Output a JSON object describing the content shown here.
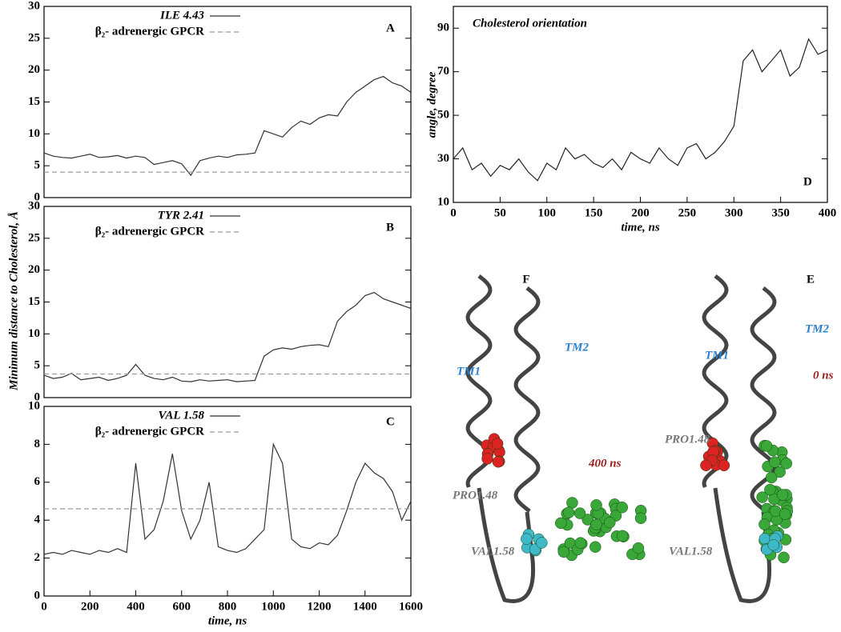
{
  "ylabel_shared": "Minimum distance to Cholesterol, Å",
  "chart_data": [
    {
      "type": "line",
      "label": "A",
      "xlim": [
        0,
        1600
      ],
      "ylim": [
        0,
        30
      ],
      "yticks": [
        0,
        5,
        10,
        15,
        20,
        25,
        30
      ],
      "x": [
        0,
        40,
        80,
        120,
        160,
        200,
        240,
        280,
        320,
        360,
        400,
        440,
        480,
        520,
        560,
        600,
        640,
        680,
        720,
        760,
        800,
        840,
        880,
        920,
        960,
        1000,
        1040,
        1080,
        1120,
        1160,
        1200,
        1240,
        1280,
        1320,
        1360,
        1400,
        1440,
        1480,
        1520,
        1560,
        1600
      ],
      "series": [
        {
          "name": "ILE 4.43",
          "color": "#333333",
          "dashed": false,
          "values": [
            7,
            6.5,
            6.3,
            6.2,
            6.5,
            6.8,
            6.3,
            6.4,
            6.6,
            6.2,
            6.5,
            6.3,
            5.2,
            5.5,
            5.8,
            5.3,
            3.5,
            5.8,
            6.2,
            6.5,
            6.3,
            6.7,
            6.8,
            7,
            10.5,
            10,
            9.5,
            11,
            12,
            11.5,
            12.5,
            13,
            12.8,
            15,
            16.5,
            17.5,
            18.5,
            19,
            18,
            17.5,
            16.5
          ]
        },
        {
          "name": "β₂- adrenergic GPCR",
          "color": "#999999",
          "dashed": true,
          "values": [
            4,
            4,
            4,
            4,
            4,
            4,
            4,
            4,
            4,
            4,
            4,
            4,
            4,
            4,
            4,
            4,
            4,
            4,
            4,
            4,
            4,
            4,
            4,
            4,
            4,
            4,
            4,
            4,
            4,
            4,
            4,
            4,
            4,
            4,
            4,
            4,
            4,
            4,
            4,
            4,
            4
          ]
        }
      ]
    },
    {
      "type": "line",
      "label": "B",
      "xlim": [
        0,
        1600
      ],
      "ylim": [
        0,
        30
      ],
      "yticks": [
        0,
        5,
        10,
        15,
        20,
        25,
        30
      ],
      "x": [
        0,
        40,
        80,
        120,
        160,
        200,
        240,
        280,
        320,
        360,
        400,
        440,
        480,
        520,
        560,
        600,
        640,
        680,
        720,
        760,
        800,
        840,
        880,
        920,
        960,
        1000,
        1040,
        1080,
        1120,
        1160,
        1200,
        1240,
        1280,
        1320,
        1360,
        1400,
        1440,
        1480,
        1520,
        1560,
        1600
      ],
      "series": [
        {
          "name": "TYR 2.41",
          "color": "#333333",
          "dashed": false,
          "values": [
            3.5,
            3,
            3.2,
            3.8,
            2.8,
            3,
            3.2,
            2.7,
            3,
            3.5,
            5.2,
            3.5,
            3,
            2.8,
            3.2,
            2.6,
            2.5,
            2.8,
            2.6,
            2.7,
            2.8,
            2.5,
            2.6,
            2.7,
            6.5,
            7.5,
            7.8,
            7.6,
            8,
            8.2,
            8.3,
            8,
            12,
            13.5,
            14.5,
            16,
            16.5,
            15.5,
            15,
            14.5,
            14
          ]
        },
        {
          "name": "β₂- adrenergic GPCR",
          "color": "#999999",
          "dashed": true,
          "values": [
            3.7,
            3.7,
            3.7,
            3.7,
            3.7,
            3.7,
            3.7,
            3.7,
            3.7,
            3.7,
            3.7,
            3.7,
            3.7,
            3.7,
            3.7,
            3.7,
            3.7,
            3.7,
            3.7,
            3.7,
            3.7,
            3.7,
            3.7,
            3.7,
            3.7,
            3.7,
            3.7,
            3.7,
            3.7,
            3.7,
            3.7,
            3.7,
            3.7,
            3.7,
            3.7,
            3.7,
            3.7,
            3.7,
            3.7,
            3.7,
            3.7
          ]
        }
      ]
    },
    {
      "type": "line",
      "label": "C",
      "xlabel": "time, ns",
      "xlim": [
        0,
        1600
      ],
      "xticks": [
        0,
        200,
        400,
        600,
        800,
        1000,
        1200,
        1400,
        1600
      ],
      "ylim": [
        0,
        10
      ],
      "yticks": [
        0,
        2,
        4,
        6,
        8,
        10
      ],
      "x": [
        0,
        40,
        80,
        120,
        160,
        200,
        240,
        280,
        320,
        360,
        400,
        440,
        480,
        520,
        560,
        600,
        640,
        680,
        720,
        760,
        800,
        840,
        880,
        920,
        960,
        1000,
        1040,
        1080,
        1120,
        1160,
        1200,
        1240,
        1280,
        1320,
        1360,
        1400,
        1440,
        1480,
        1520,
        1560,
        1600
      ],
      "series": [
        {
          "name": "VAL 1.58",
          "color": "#333333",
          "dashed": false,
          "values": [
            2.2,
            2.3,
            2.2,
            2.4,
            2.3,
            2.2,
            2.4,
            2.3,
            2.5,
            2.3,
            7,
            3,
            3.5,
            5,
            7.5,
            4.5,
            3,
            4,
            6,
            2.6,
            2.4,
            2.3,
            2.5,
            3,
            3.5,
            8,
            7,
            3,
            2.6,
            2.5,
            2.8,
            2.7,
            3.2,
            4.5,
            6,
            7,
            6.5,
            6.2,
            5.5,
            4,
            5
          ]
        },
        {
          "name": "β₂- adrenergic GPCR",
          "color": "#999999",
          "dashed": true,
          "values": [
            4.6,
            4.6,
            4.6,
            4.6,
            4.6,
            4.6,
            4.6,
            4.6,
            4.6,
            4.6,
            4.6,
            4.6,
            4.6,
            4.6,
            4.6,
            4.6,
            4.6,
            4.6,
            4.6,
            4.6,
            4.6,
            4.6,
            4.6,
            4.6,
            4.6,
            4.6,
            4.6,
            4.6,
            4.6,
            4.6,
            4.6,
            4.6,
            4.6,
            4.6,
            4.6,
            4.6,
            4.6,
            4.6,
            4.6,
            4.6,
            4.6
          ]
        }
      ]
    },
    {
      "type": "line",
      "label": "D",
      "title": "Cholesterol orientation",
      "xlabel": "time, ns",
      "ylabel": "angle, degree",
      "xlim": [
        0,
        400
      ],
      "xticks": [
        0,
        50,
        100,
        150,
        200,
        250,
        300,
        350,
        400
      ],
      "ylim": [
        10,
        100
      ],
      "yticks": [
        10,
        30,
        50,
        70,
        90
      ],
      "color": "#222222",
      "x": [
        0,
        10,
        20,
        30,
        40,
        50,
        60,
        70,
        80,
        90,
        100,
        110,
        120,
        130,
        140,
        150,
        160,
        170,
        180,
        190,
        200,
        210,
        220,
        230,
        240,
        250,
        260,
        270,
        280,
        290,
        300,
        310,
        320,
        330,
        340,
        350,
        360,
        370,
        380,
        390,
        400
      ],
      "values": [
        30,
        35,
        25,
        28,
        22,
        27,
        25,
        30,
        24,
        20,
        28,
        25,
        35,
        30,
        32,
        28,
        26,
        30,
        25,
        33,
        30,
        28,
        35,
        30,
        27,
        35,
        37,
        30,
        33,
        38,
        45,
        75,
        80,
        70,
        75,
        80,
        68,
        72,
        85,
        78,
        80
      ]
    }
  ],
  "structures": [
    {
      "panel": "F",
      "tm1": "TM1",
      "tm2": "TM2",
      "time": "400 ns",
      "pro": "PRO1.48",
      "val": "VAL1.58"
    },
    {
      "panel": "E",
      "tm1": "TM1",
      "tm2": "TM2",
      "time": "0 ns",
      "pro": "PRO1.48",
      "val": "VAL1.58"
    }
  ]
}
